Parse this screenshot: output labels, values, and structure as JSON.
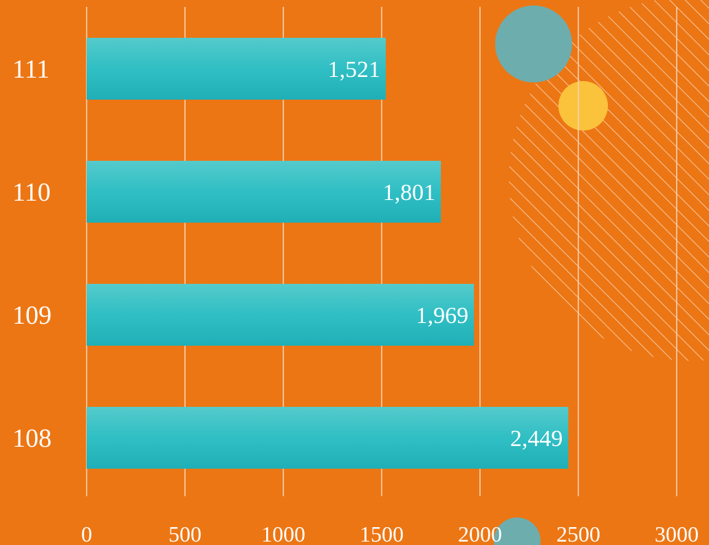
{
  "chart_data": {
    "type": "bar",
    "orientation": "horizontal",
    "categories": [
      "111",
      "110",
      "109",
      "108"
    ],
    "values": [
      1521,
      1801,
      1969,
      2449
    ],
    "value_labels": [
      "1,521",
      "1,801",
      "1,969",
      "2,449"
    ],
    "xlim": [
      0,
      3000
    ],
    "xticks": [
      "0",
      "500",
      "1000",
      "1500",
      "2000",
      "2500",
      "3000"
    ],
    "title": "",
    "xlabel": "",
    "ylabel": "",
    "grid": "vertical",
    "legend": "none"
  },
  "colors": {
    "background": "#EC7614",
    "bar_top": "#55CACB",
    "bar_mid": "#2FBFC4",
    "bar_bottom": "#20AFB6",
    "grid": "#F6D7BE",
    "decor_teal": "#6DADAE",
    "decor_yellow": "#FBC23C"
  }
}
